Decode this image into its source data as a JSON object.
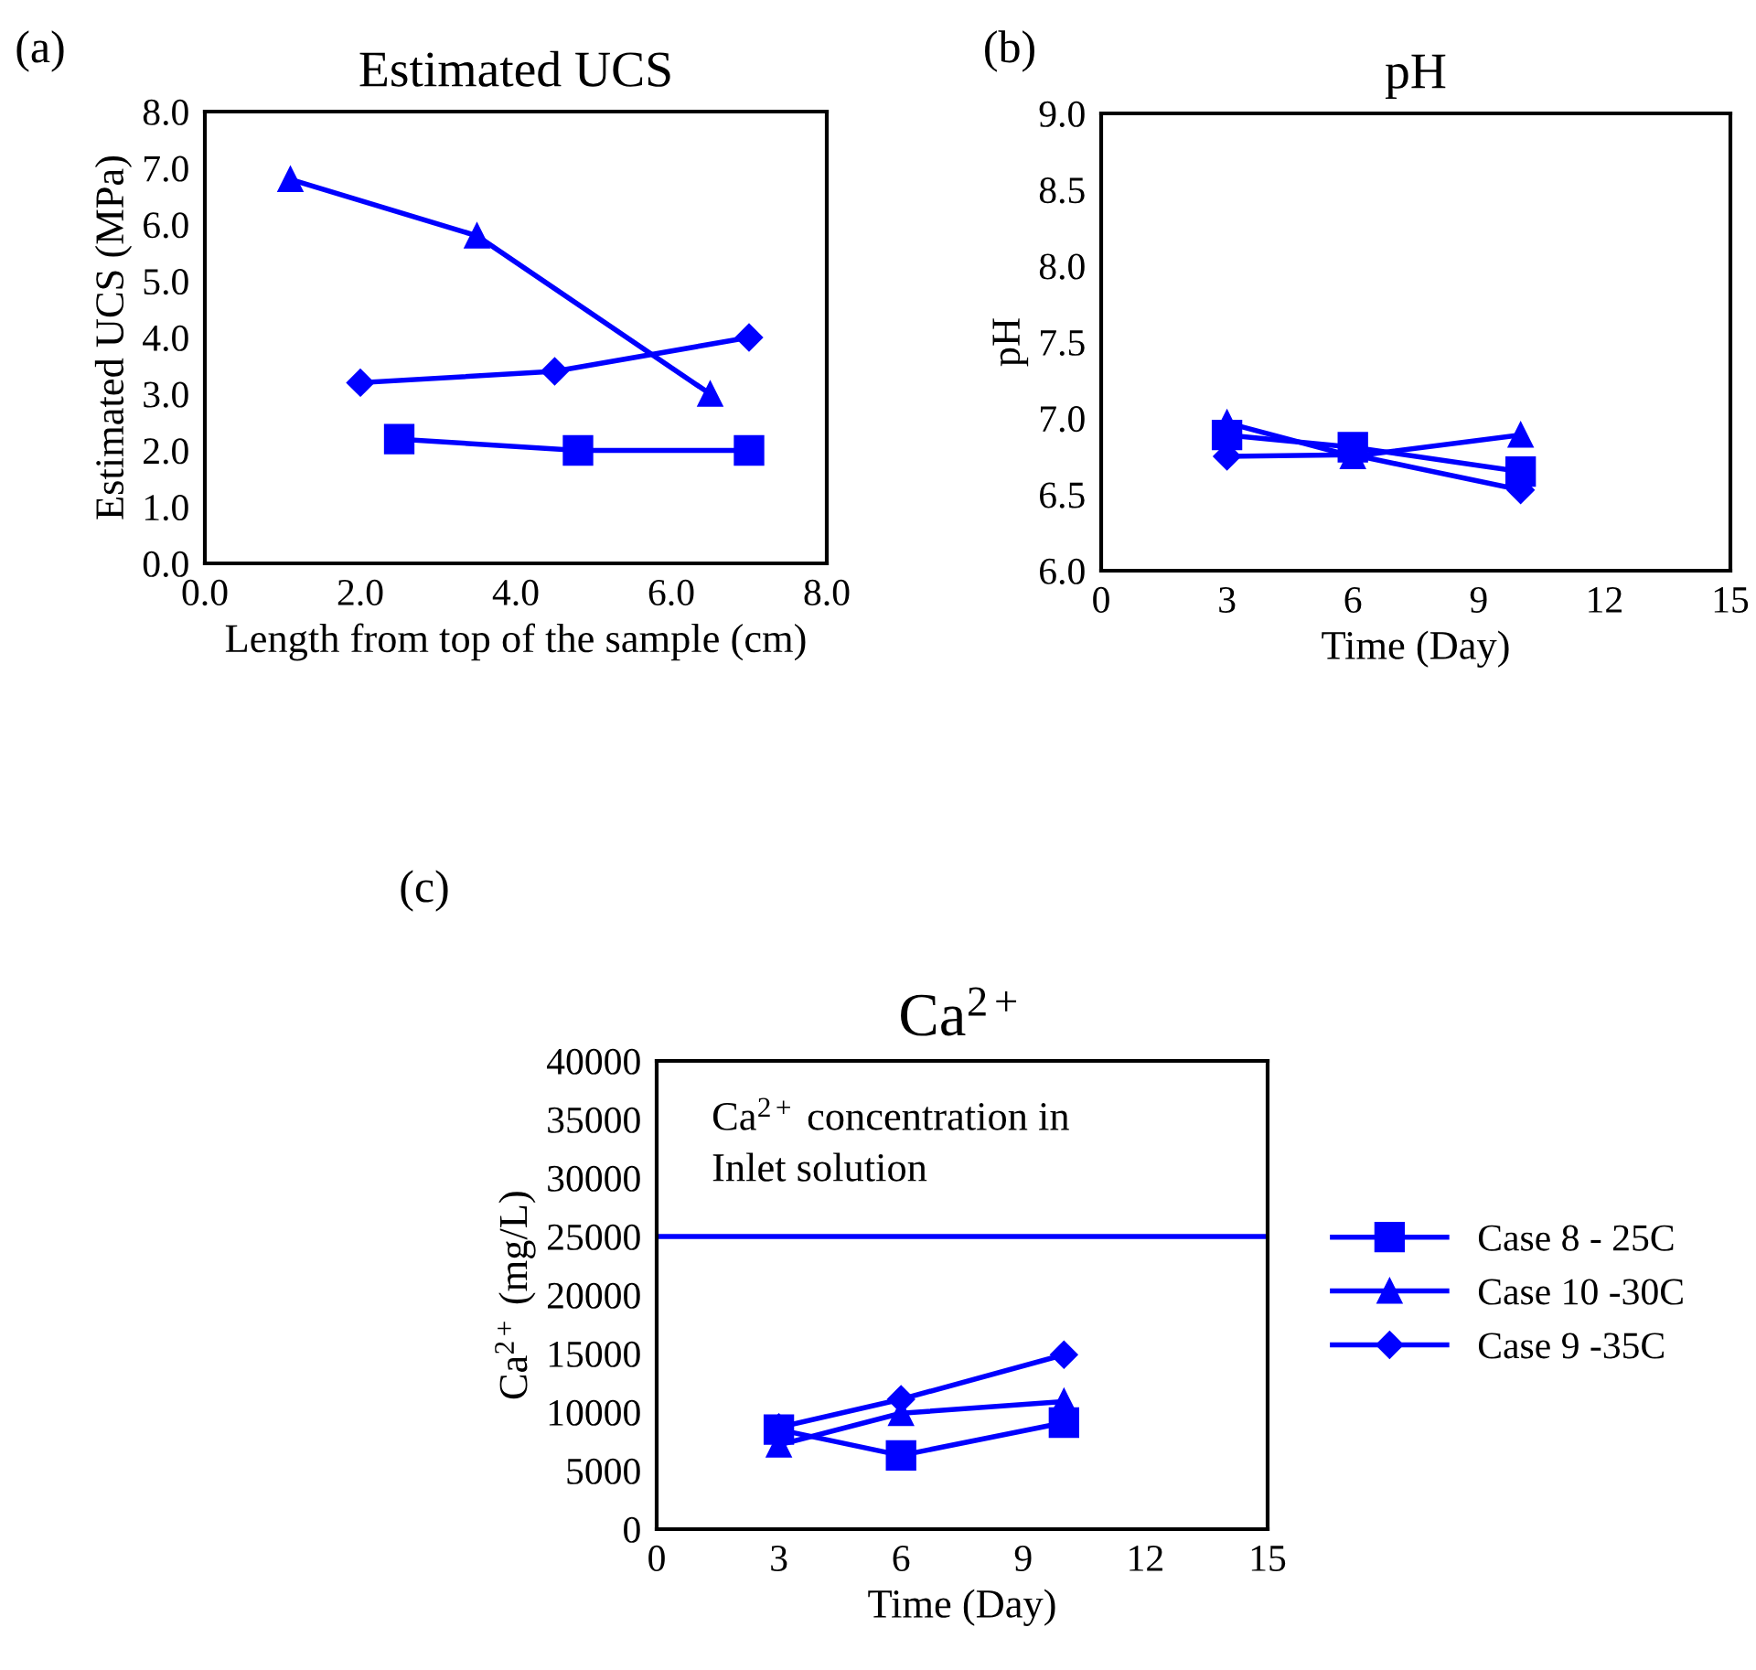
{
  "chart_data": [
    {
      "type": "line",
      "title": "Estimated UCS",
      "xlabel": "Length from top of the sample (cm)",
      "ylabel": "Estimated UCS (MPa)",
      "annotations": [
        "(a)"
      ],
      "xlim": [
        0,
        8
      ],
      "ylim": [
        0,
        8
      ],
      "xticks": [
        {
          "value": 0,
          "label": "0.0"
        },
        {
          "value": 2,
          "label": "2.0"
        },
        {
          "value": 4,
          "label": "4.0"
        },
        {
          "value": 6,
          "label": "6.0"
        },
        {
          "value": 8,
          "label": "8.0"
        }
      ],
      "yticks": [
        {
          "value": 0,
          "label": "0.0"
        },
        {
          "value": 1,
          "label": "1.0"
        },
        {
          "value": 2,
          "label": "2.0"
        },
        {
          "value": 3,
          "label": "3.0"
        },
        {
          "value": 4,
          "label": "4.0"
        },
        {
          "value": 5,
          "label": "5.0"
        },
        {
          "value": 6,
          "label": "6.0"
        },
        {
          "value": 7,
          "label": "7.0"
        },
        {
          "value": 8,
          "label": "8.0"
        }
      ],
      "grid": false,
      "legend": false,
      "series": [
        {
          "color": "#0000ff",
          "marker": "square",
          "x": [
            2.5,
            4.8,
            7.0
          ],
          "values": [
            2.2,
            2.0,
            2.0
          ]
        },
        {
          "color": "#0000ff",
          "marker": "triangle",
          "x": [
            1.1,
            3.5,
            6.5
          ],
          "values": [
            6.8,
            5.8,
            3.0
          ]
        },
        {
          "color": "#0000ff",
          "marker": "diamond",
          "x": [
            2.0,
            4.5,
            7.0
          ],
          "values": [
            3.2,
            3.4,
            4.0
          ]
        }
      ]
    },
    {
      "type": "line",
      "title": "pH",
      "xlabel": "Time (Day)",
      "ylabel": "pH",
      "annotations": [
        "(b)"
      ],
      "xlim": [
        0,
        15
      ],
      "ylim": [
        6,
        9
      ],
      "xticks": [
        0,
        3,
        6,
        9,
        12,
        15
      ],
      "yticks": [
        {
          "value": 6,
          "label": "6.0"
        },
        {
          "value": 6.5,
          "label": "6.5"
        },
        {
          "value": 7,
          "label": "7.0"
        },
        {
          "value": 7.5,
          "label": "7.5"
        },
        {
          "value": 8,
          "label": "8.0"
        },
        {
          "value": 8.5,
          "label": "8.5"
        },
        {
          "value": 9,
          "label": "9.0"
        }
      ],
      "grid": false,
      "legend": false,
      "series": [
        {
          "color": "#0000ff",
          "marker": "square",
          "x": [
            3,
            6,
            10
          ],
          "values": [
            6.89,
            6.81,
            6.65
          ]
        },
        {
          "color": "#0000ff",
          "marker": "triangle",
          "x": [
            3,
            6,
            10
          ],
          "values": [
            6.97,
            6.75,
            6.89
          ]
        },
        {
          "color": "#0000ff",
          "marker": "diamond",
          "x": [
            3,
            6,
            10
          ],
          "values": [
            6.75,
            6.76,
            6.53
          ]
        }
      ]
    },
    {
      "type": "line",
      "title": "Ca$^{2+}$",
      "xlabel": "Time (Day)",
      "ylabel": "Ca$^{2+}$ (mg/L)",
      "annotations": [
        "(c)"
      ],
      "xlim": [
        0,
        15
      ],
      "ylim": [
        0,
        40000
      ],
      "xticks": [
        0,
        3,
        6,
        9,
        12,
        15
      ],
      "yticks": [
        0,
        5000,
        10000,
        15000,
        20000,
        25000,
        30000,
        35000,
        40000
      ],
      "grid": false,
      "legend": "right",
      "ref_lines": [
        {
          "axis": "y",
          "value": 25000,
          "label": "Ca$^{2+}$ concentration in\nInlet solution",
          "color": "#0000ff"
        }
      ],
      "series": [
        {
          "name": "Case 8 - 25C",
          "color": "#0000ff",
          "marker": "square",
          "x": [
            3,
            6,
            10
          ],
          "values": [
            8500,
            6300,
            9100
          ]
        },
        {
          "name": "Case 10 -30C",
          "color": "#0000ff",
          "marker": "triangle",
          "x": [
            3,
            6,
            10
          ],
          "values": [
            7200,
            9900,
            10900
          ]
        },
        {
          "name": "Case 9 -35C",
          "color": "#0000ff",
          "marker": "diamond",
          "x": [
            3,
            6,
            10
          ],
          "values": [
            8700,
            11100,
            14900
          ]
        }
      ]
    }
  ]
}
